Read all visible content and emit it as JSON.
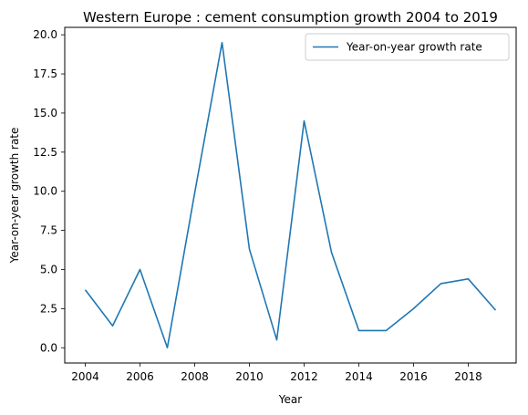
{
  "chart_data": {
    "type": "line",
    "title": "Western Europe : cement consumption growth 2004 to 2019",
    "xlabel": "Year",
    "ylabel": "Year-on-year growth rate",
    "x": [
      2004,
      2005,
      2006,
      2007,
      2008,
      2009,
      2010,
      2011,
      2012,
      2013,
      2014,
      2015,
      2016,
      2017,
      2018,
      2019
    ],
    "series": [
      {
        "name": "Year-on-year growth rate",
        "color": "#1f77b4",
        "values": [
          3.7,
          1.4,
          5.0,
          0.0,
          9.9,
          19.5,
          6.3,
          0.5,
          14.5,
          6.1,
          1.1,
          1.1,
          2.5,
          4.1,
          4.4,
          2.4
        ]
      }
    ],
    "xlim": [
      2003.25,
      2019.75
    ],
    "ylim": [
      -0.975,
      20.475
    ],
    "xticks": [
      "2004",
      "2006",
      "2008",
      "2010",
      "2012",
      "2014",
      "2016",
      "2018"
    ],
    "yticks": [
      "0.0",
      "2.5",
      "5.0",
      "7.5",
      "10.0",
      "12.5",
      "15.0",
      "17.5",
      "20.0"
    ],
    "legend_position": "top-right",
    "grid": false
  }
}
